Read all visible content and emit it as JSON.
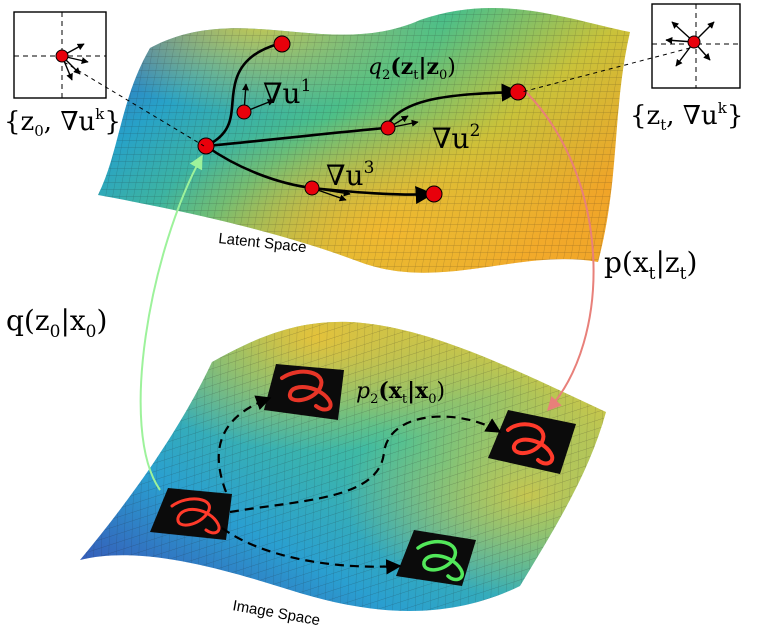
{
  "surfaces": {
    "latent_label": "Latent Space",
    "image_label": "Image Space"
  },
  "insets": {
    "left_label_set": "{z",
    "left_label_sub": "0",
    "left_label_rest": ", ∇u",
    "left_label_sup": "k",
    "left_label_close": "}",
    "right_label_set": "{z",
    "right_label_sub": "t",
    "right_label_rest": ", ∇u",
    "right_label_sup": "k",
    "right_label_close": "}"
  },
  "gradients": {
    "g1_base": "∇u",
    "g1_sup": "1",
    "g2_base": "∇u",
    "g2_sup": "2",
    "g3_base": "∇u",
    "g3_sup": "3"
  },
  "formulas": {
    "q2_pre": "q",
    "q2_sub": "2",
    "q2_mid": "(z",
    "q2_zt_sub": "t",
    "q2_bar": "|z",
    "q2_z0_sub": "0",
    "q2_close": ")",
    "p_pre": "p(x",
    "p_sub": "t",
    "p_bar": "|z",
    "p_sub2": "t",
    "p_close": ")",
    "q_pre": "q(z",
    "q_sub": "0",
    "q_bar": "|x",
    "q_sub2": "0",
    "q_close": ")",
    "p2_pre": "p",
    "p2_sub": "2",
    "p2_mid": "(x",
    "p2_xt_sub": "t",
    "p2_bar": "|x",
    "p2_x0_sub": "0",
    "p2_close": ")"
  },
  "colors": {
    "latent_to_image_arrow": "#e8807a",
    "image_to_latent_arrow": "#9df29b",
    "point_fill": "#e8000b",
    "digit_red": "#ff3a2a",
    "digit_green": "#52e85a"
  }
}
